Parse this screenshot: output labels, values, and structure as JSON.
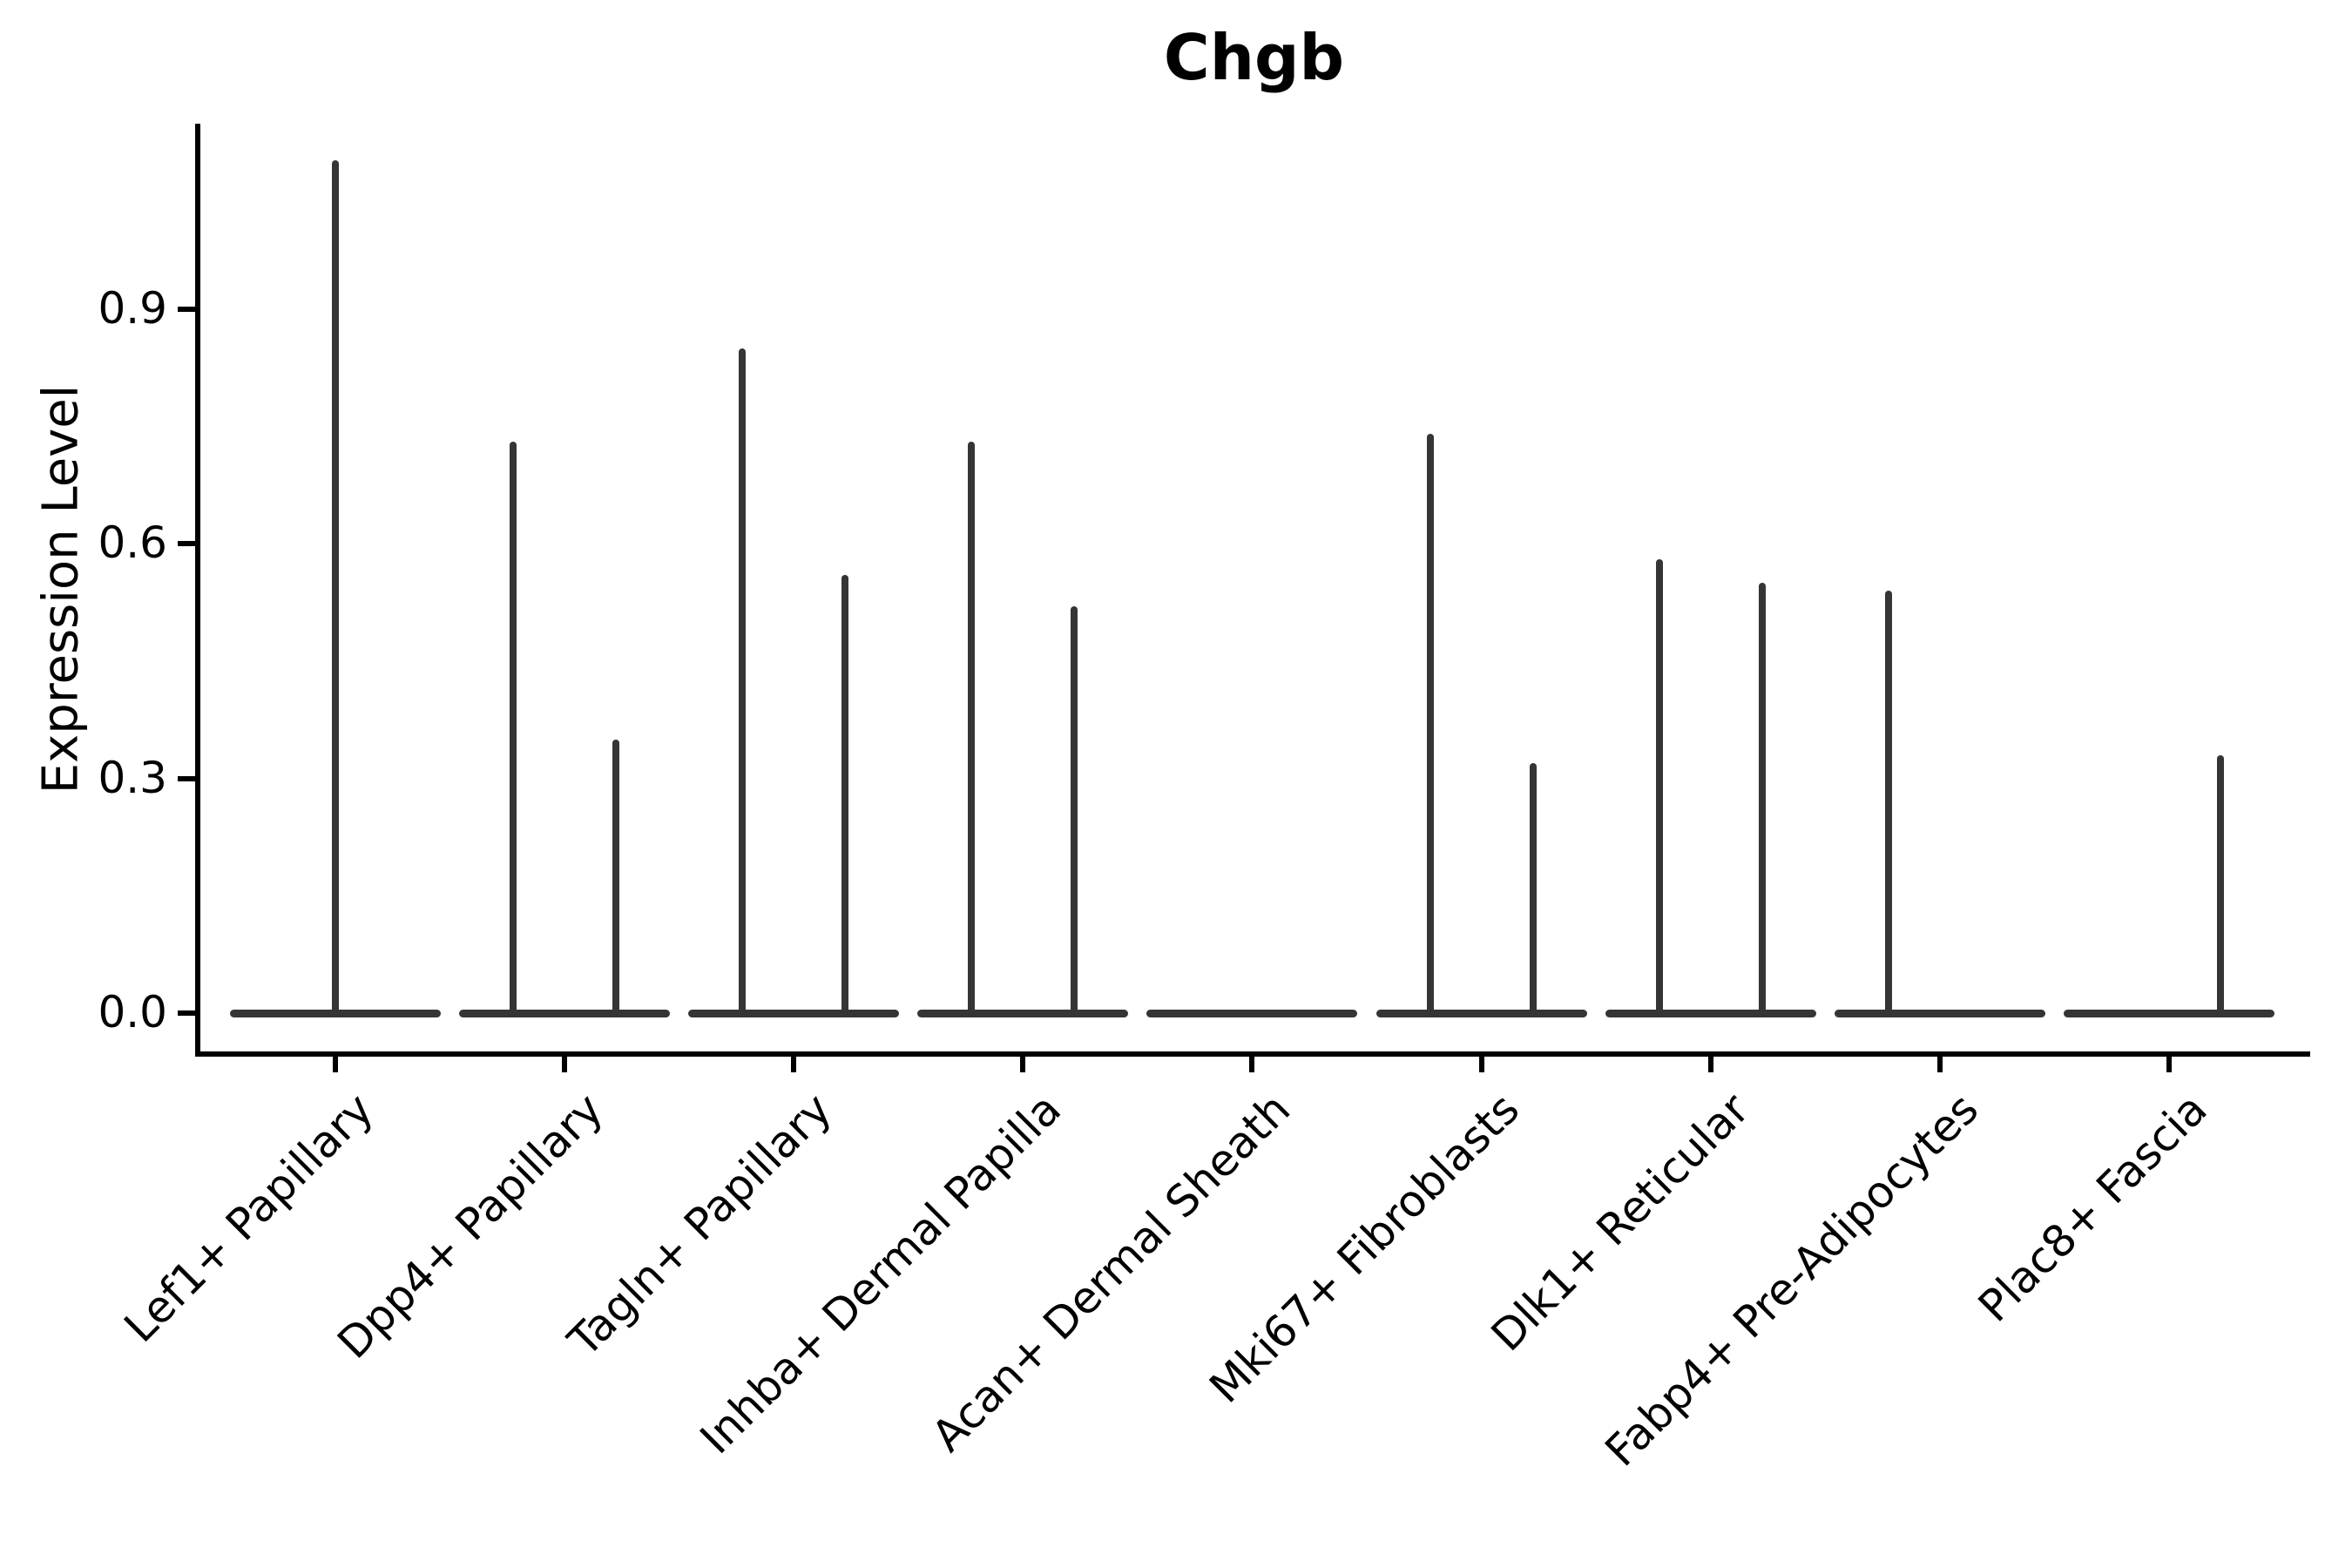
{
  "chart_data": {
    "type": "violin",
    "title": "Chgb",
    "ylabel": "Expression Level",
    "xlabel": "",
    "ytick_labels": [
      "0.0",
      "0.3",
      "0.6",
      "0.9"
    ],
    "ytick_values": [
      0.0,
      0.3,
      0.6,
      0.9
    ],
    "ylim": [
      0.0,
      1.135
    ],
    "grid": false,
    "legend": null,
    "categories": [
      "Lef1+ Papillary",
      "Dpp4+ Papillary",
      "Tagln+ Papillary",
      "Inhba+ Dermal Papilla",
      "Acan+ Dermal Sheath",
      "Mki67+ Fibroblasts",
      "Dlk1+ Reticular",
      "Fabp4+ Pre-Adipocytes",
      "Plac8+ Fascia"
    ],
    "violins": [
      {
        "category": "Lef1+ Papillary",
        "body_at_zero": true,
        "spikes": [
          {
            "offset": "center",
            "max_expression": 1.09
          }
        ]
      },
      {
        "category": "Dpp4+ Papillary",
        "body_at_zero": true,
        "spikes": [
          {
            "offset": "left",
            "max_expression": 0.73
          },
          {
            "offset": "right",
            "max_expression": 0.35
          }
        ]
      },
      {
        "category": "Tagln+ Papillary",
        "body_at_zero": true,
        "spikes": [
          {
            "offset": "left",
            "max_expression": 0.85
          },
          {
            "offset": "right",
            "max_expression": 0.56
          }
        ]
      },
      {
        "category": "Inhba+ Dermal Papilla",
        "body_at_zero": true,
        "spikes": [
          {
            "offset": "left",
            "max_expression": 0.73
          },
          {
            "offset": "right",
            "max_expression": 0.52
          }
        ]
      },
      {
        "category": "Acan+ Dermal Sheath",
        "body_at_zero": true,
        "spikes": []
      },
      {
        "category": "Mki67+ Fibroblasts",
        "body_at_zero": true,
        "spikes": [
          {
            "offset": "left",
            "max_expression": 0.74
          },
          {
            "offset": "right",
            "max_expression": 0.32
          }
        ]
      },
      {
        "category": "Dlk1+ Reticular",
        "body_at_zero": true,
        "spikes": [
          {
            "offset": "left",
            "max_expression": 0.58
          },
          {
            "offset": "right",
            "max_expression": 0.55
          }
        ]
      },
      {
        "category": "Fabp4+ Pre-Adipocytes",
        "body_at_zero": true,
        "spikes": [
          {
            "offset": "left",
            "max_expression": 0.54
          }
        ]
      },
      {
        "category": "Plac8+ Fascia",
        "body_at_zero": true,
        "spikes": [
          {
            "offset": "right",
            "max_expression": 0.33
          }
        ]
      }
    ],
    "colors": {
      "violin": "#353535",
      "axis": "#000000",
      "text": "#000000",
      "background": "#ffffff"
    }
  }
}
